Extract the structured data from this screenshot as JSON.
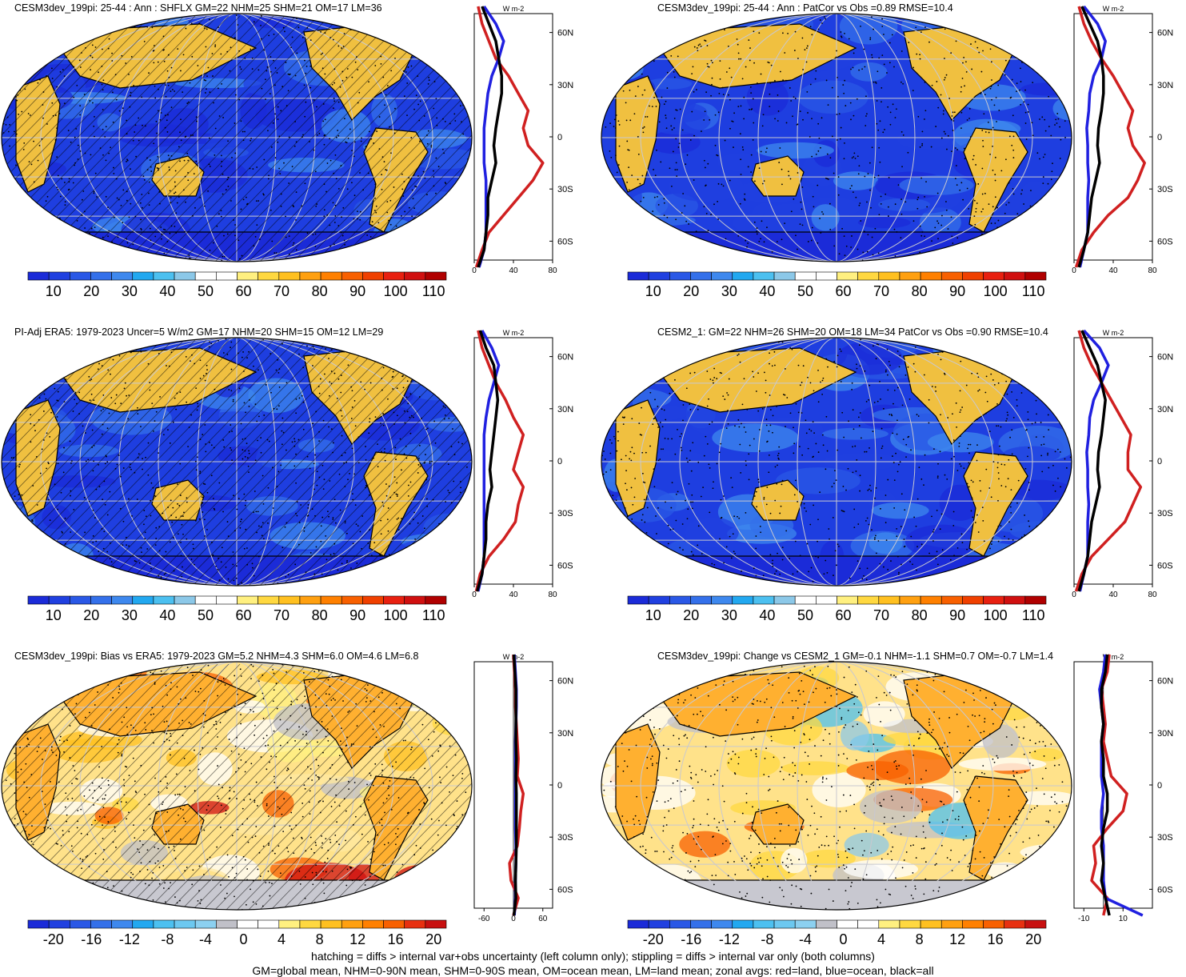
{
  "panels": [
    {
      "title": "CESM3dev_199pi: 25-44 : Ann : SHFLX GM=22 NHM=25 SHM=21 OM=17 LM=36",
      "kind": "abs",
      "colorbar_labels": [
        "10",
        "20",
        "30",
        "40",
        "50",
        "60",
        "70",
        "80",
        "90",
        "100",
        "110"
      ],
      "map_description_style": "blue ocean with warm land",
      "zonal": {
        "xticks": [
          "0",
          "40",
          "80"
        ],
        "xlim": [
          0,
          80
        ],
        "unit": "W m-2",
        "ylabels": [
          "60N",
          "30N",
          "0",
          "30S",
          "60S"
        ]
      }
    },
    {
      "title": "CESM3dev_199pi: 25-44 : Ann : PatCor vs Obs =0.89 RMSE=10.4",
      "kind": "abs",
      "colorbar_labels": [
        "10",
        "20",
        "30",
        "40",
        "50",
        "60",
        "70",
        "80",
        "90",
        "100",
        "110"
      ],
      "zonal": {
        "xticks": [
          "0",
          "40",
          "80"
        ],
        "xlim": [
          0,
          80
        ],
        "unit": "W m-2",
        "ylabels": [
          "60N",
          "30N",
          "0",
          "30S",
          "60S"
        ]
      }
    },
    {
      "title": "PI-Adj ERA5: 1979-2023 Uncer=5 W/m2 GM=17 NHM=20 SHM=15 OM=12 LM=29",
      "kind": "abs",
      "colorbar_labels": [
        "10",
        "20",
        "30",
        "40",
        "50",
        "60",
        "70",
        "80",
        "90",
        "100",
        "110"
      ],
      "zonal": {
        "xticks": [
          "0",
          "40",
          "80"
        ],
        "xlim": [
          0,
          80
        ],
        "unit": "W m-2",
        "ylabels": [
          "60N",
          "30N",
          "0",
          "30S",
          "60S"
        ]
      }
    },
    {
      "title": "CESM2_1: GM=22 NHM=26 SHM=20 OM=18 LM=34 PatCor vs Obs =0.90 RMSE=10.4",
      "kind": "abs",
      "colorbar_labels": [
        "10",
        "20",
        "30",
        "40",
        "50",
        "60",
        "70",
        "80",
        "90",
        "100",
        "110"
      ],
      "zonal": {
        "xticks": [
          "0",
          "40",
          "80"
        ],
        "xlim": [
          0,
          80
        ],
        "unit": "W m-2",
        "ylabels": [
          "60N",
          "30N",
          "0",
          "30S",
          "60S"
        ]
      }
    },
    {
      "title": "CESM3dev_199pi: Bias vs ERA5: 1979-2023 GM=5.2 NHM=4.3 SHM=6.0 OM=4.6 LM=6.8",
      "kind": "diff",
      "colorbar_labels": [
        "-20",
        "-16",
        "-12",
        "-8",
        "-4",
        "0",
        "4",
        "8",
        "12",
        "16",
        "20"
      ],
      "zonal": {
        "xticks": [
          "-60",
          "0",
          "60"
        ],
        "xlim": [
          -80,
          80
        ],
        "unit": "W m-2",
        "ylabels": [
          "60N",
          "30N",
          "0",
          "30S",
          "60S"
        ]
      }
    },
    {
      "title": "CESM3dev_199pi: Change vs CESM2_1 GM=-0.1 NHM=-1.1 SHM=0.7 OM=-0.7 LM=1.4",
      "kind": "diff",
      "colorbar_labels": [
        "-20",
        "-16",
        "-12",
        "-8",
        "-4",
        "0",
        "4",
        "8",
        "12",
        "16",
        "20"
      ],
      "zonal": {
        "xticks": [
          "-10",
          "10"
        ],
        "xlim": [
          -15,
          25
        ],
        "unit": "W m-2",
        "ylabels": [
          "60N",
          "30N",
          "0",
          "30S",
          "60S"
        ]
      }
    }
  ],
  "colors": {
    "abs_scale": [
      "#1b2bd8",
      "#2040e0",
      "#2a58e6",
      "#3470ea",
      "#3e88ee",
      "#22a8f0",
      "#4cc0f0",
      "#8cc8e8",
      "#ffffff",
      "#ffffff",
      "#fff080",
      "#ffd840",
      "#ffc020",
      "#ffa010",
      "#ff8000",
      "#f86000",
      "#f04000",
      "#e82010",
      "#d01010",
      "#b00000"
    ],
    "diff_scale": [
      "#1b2bd8",
      "#2040e0",
      "#2a58e6",
      "#3470ea",
      "#3e88ee",
      "#22a8f0",
      "#4cc0f0",
      "#6cc8f0",
      "#8cd0f0",
      "#c0c0c8",
      "#ffffff",
      "#ffffff",
      "#fff080",
      "#ffd840",
      "#ffc020",
      "#ffa010",
      "#ff8000",
      "#f86000",
      "#e83010",
      "#c81010"
    ],
    "land": "#d02020",
    "ocean": "#2020e0",
    "all": "#000000"
  },
  "footer": {
    "line1": "hatching = diffs > internal var+obs uncertainty (left column only); stippling = diffs > internal var only (both columns)",
    "line2": "GM=global mean, NHM=0-90N mean, SHM=0-90S mean, OM=ocean mean, LM=land mean; zonal avgs: red=land, blue=ocean, black=all"
  },
  "chart_data": [
    {
      "type": "line",
      "title": "CESM3dev_199pi: 25-44 : Ann : SHFLX GM=22 NHM=25 SHM=21 OM=17 LM=36",
      "x_label": "W m-2",
      "xlim": [
        0,
        80
      ],
      "y_axis": "latitude",
      "y": [
        -75,
        -65,
        -55,
        -45,
        -35,
        -25,
        -15,
        -5,
        5,
        15,
        25,
        35,
        45,
        55,
        65,
        75
      ],
      "series": [
        {
          "name": "red=land",
          "values": [
            2,
            8,
            15,
            30,
            45,
            60,
            70,
            55,
            50,
            55,
            45,
            35,
            22,
            15,
            8,
            4
          ]
        },
        {
          "name": "blue=ocean",
          "values": [
            5,
            10,
            12,
            12,
            12,
            12,
            10,
            10,
            10,
            12,
            14,
            18,
            25,
            30,
            22,
            10
          ]
        },
        {
          "name": "black=all",
          "values": [
            4,
            10,
            12,
            14,
            14,
            18,
            22,
            20,
            22,
            25,
            28,
            28,
            25,
            22,
            15,
            8
          ]
        }
      ]
    },
    {
      "type": "line",
      "title": "CESM3dev_199pi: 25-44 : Ann : PatCor vs Obs =0.89 RMSE=10.4",
      "x_label": "W m-2",
      "xlim": [
        0,
        80
      ],
      "y_axis": "latitude",
      "y": [
        -75,
        -65,
        -55,
        -45,
        -35,
        -25,
        -15,
        -5,
        5,
        15,
        25,
        35,
        45,
        55,
        65,
        75
      ],
      "series": [
        {
          "name": "red=land",
          "values": [
            2,
            8,
            20,
            35,
            55,
            65,
            72,
            60,
            55,
            60,
            50,
            40,
            28,
            18,
            10,
            5
          ]
        },
        {
          "name": "blue=ocean",
          "values": [
            6,
            10,
            14,
            14,
            14,
            15,
            14,
            14,
            13,
            15,
            16,
            20,
            28,
            32,
            24,
            10
          ]
        },
        {
          "name": "black=all",
          "values": [
            5,
            10,
            14,
            16,
            18,
            22,
            26,
            24,
            25,
            28,
            30,
            30,
            28,
            24,
            16,
            8
          ]
        }
      ]
    },
    {
      "type": "line",
      "title": "PI-Adj ERA5: 1979-2023 Uncer=5 W/m2 GM=17 NHM=20 SHM=15 OM=12 LM=29",
      "x_label": "W m-2",
      "xlim": [
        0,
        80
      ],
      "y_axis": "latitude",
      "y": [
        -75,
        -65,
        -55,
        -45,
        -35,
        -25,
        -15,
        -5,
        5,
        15,
        25,
        35,
        45,
        55,
        65,
        75
      ],
      "series": [
        {
          "name": "red=land",
          "values": [
            2,
            6,
            15,
            30,
            42,
            45,
            50,
            40,
            45,
            50,
            40,
            32,
            22,
            15,
            8,
            4
          ]
        },
        {
          "name": "blue=ocean",
          "values": [
            4,
            8,
            10,
            10,
            10,
            10,
            10,
            10,
            10,
            10,
            12,
            15,
            20,
            25,
            18,
            8
          ]
        },
        {
          "name": "black=all",
          "values": [
            3,
            8,
            10,
            12,
            12,
            14,
            18,
            16,
            18,
            20,
            22,
            24,
            22,
            20,
            12,
            6
          ]
        }
      ]
    },
    {
      "type": "line",
      "title": "CESM2_1: GM=22 NHM=26 SHM=20 OM=18 LM=34 PatCor vs Obs =0.90 RMSE=10.4",
      "x_label": "W m-2",
      "xlim": [
        0,
        80
      ],
      "y_axis": "latitude",
      "y": [
        -75,
        -65,
        -55,
        -45,
        -35,
        -25,
        -15,
        -5,
        5,
        15,
        25,
        35,
        45,
        55,
        65,
        75
      ],
      "series": [
        {
          "name": "red=land",
          "values": [
            2,
            8,
            18,
            35,
            52,
            60,
            68,
            55,
            55,
            58,
            48,
            38,
            28,
            18,
            10,
            5
          ]
        },
        {
          "name": "blue=ocean",
          "values": [
            6,
            10,
            14,
            14,
            14,
            15,
            14,
            14,
            13,
            15,
            16,
            20,
            28,
            35,
            26,
            10
          ]
        },
        {
          "name": "black=all",
          "values": [
            5,
            10,
            14,
            16,
            18,
            22,
            26,
            24,
            25,
            28,
            30,
            32,
            28,
            24,
            16,
            8
          ]
        }
      ]
    },
    {
      "type": "line",
      "title": "CESM3dev_199pi: Bias vs ERA5: 1979-2023 GM=5.2 NHM=4.3 SHM=6.0 OM=4.6 LM=6.8",
      "x_label": "W m-2",
      "xlim": [
        -80,
        80
      ],
      "y_axis": "latitude",
      "y": [
        -75,
        -65,
        -55,
        -45,
        -35,
        -25,
        -15,
        -5,
        5,
        15,
        25,
        35,
        45,
        55,
        65,
        75
      ],
      "series": [
        {
          "name": "red=land",
          "values": [
            0,
            10,
            -5,
            -8,
            8,
            12,
            15,
            20,
            8,
            10,
            8,
            6,
            4,
            4,
            2,
            0
          ]
        },
        {
          "name": "blue=ocean",
          "values": [
            2,
            4,
            4,
            5,
            5,
            4,
            4,
            4,
            4,
            4,
            4,
            5,
            6,
            6,
            4,
            2
          ]
        },
        {
          "name": "black=all",
          "values": [
            1,
            5,
            4,
            5,
            6,
            6,
            6,
            6,
            5,
            6,
            5,
            5,
            5,
            5,
            3,
            1
          ]
        }
      ]
    },
    {
      "type": "line",
      "title": "CESM3dev_199pi: Change vs CESM2_1 GM=-0.1 NHM=-1.1 SHM=0.7 OM=-0.7 LM=1.4",
      "x_label": "W m-2",
      "xlim": [
        -15,
        25
      ],
      "y_axis": "latitude",
      "y": [
        -75,
        -65,
        -55,
        -45,
        -35,
        -25,
        -15,
        -5,
        5,
        15,
        25,
        35,
        45,
        55,
        65,
        75
      ],
      "series": [
        {
          "name": "red=land",
          "values": [
            0,
            2,
            -6,
            -4,
            -5,
            2,
            10,
            12,
            4,
            2,
            0,
            1,
            0,
            -1,
            2,
            3
          ]
        },
        {
          "name": "blue=ocean",
          "values": [
            20,
            1,
            0,
            0,
            0,
            -1,
            -1,
            0,
            -1,
            -1,
            -1,
            0,
            -1,
            -2,
            0,
            1
          ]
        },
        {
          "name": "black=all",
          "values": [
            3,
            1,
            -1,
            0,
            -1,
            0,
            2,
            2,
            0,
            0,
            -1,
            0,
            -1,
            -1,
            1,
            2
          ]
        }
      ]
    }
  ]
}
